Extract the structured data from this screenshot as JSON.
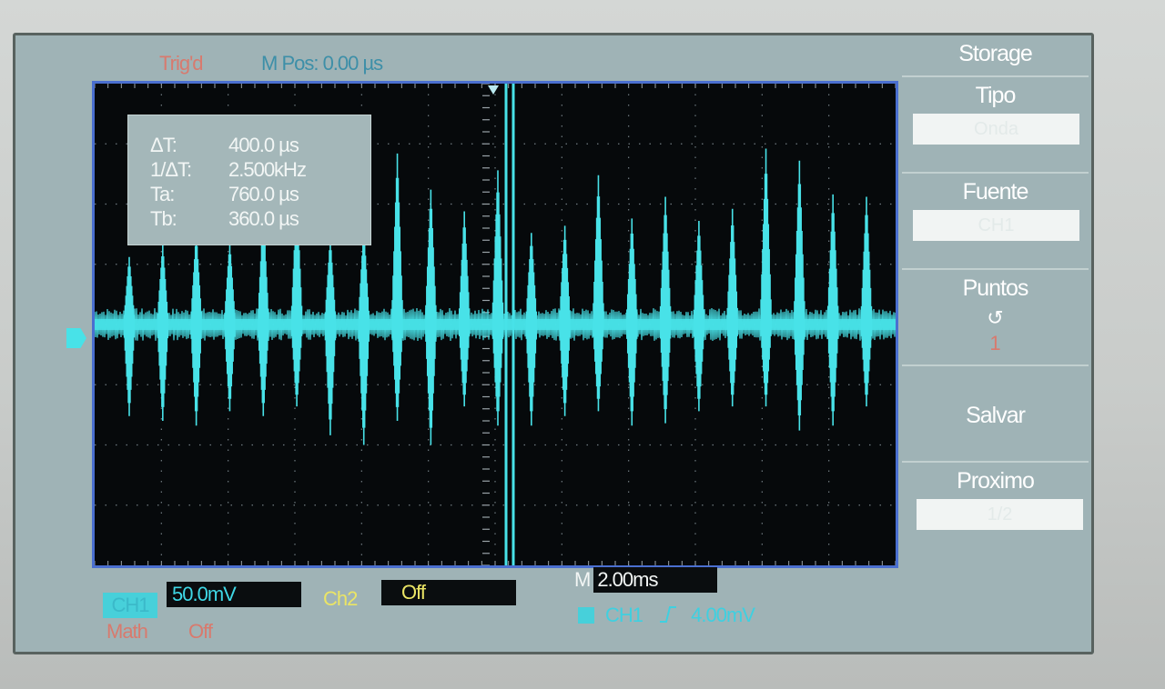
{
  "header": {
    "trigger_status": "Trig'd",
    "horizontal_position": "M Pos: 0.00 µs"
  },
  "measurement": {
    "rows": [
      {
        "label": "ΔT:",
        "value": "400.0 µs"
      },
      {
        "label": "1/ΔT:",
        "value": "2.500kHz"
      },
      {
        "label": "Ta:",
        "value": "760.0 µs"
      },
      {
        "label": "Tb:",
        "value": "360.0 µs"
      }
    ]
  },
  "menu": {
    "title": "Storage",
    "items": [
      {
        "label": "Tipo",
        "value": "Onda"
      },
      {
        "label": "Fuente",
        "value": "CH1"
      },
      {
        "label": "Puntos",
        "symbol": "↺",
        "value": "1"
      },
      {
        "label": "Salvar"
      },
      {
        "label": "Proximo",
        "value": "1/2"
      }
    ]
  },
  "footer": {
    "ch1_label": "CH1",
    "ch1_scale": "50.0mV",
    "ch2_label": "Ch2",
    "ch2_scale": "Off",
    "timebase_prefix": "M",
    "timebase": "2.00ms",
    "trigger_source": "CH1",
    "trigger_slope_icon": "rising-edge",
    "trigger_level": "4.00mV",
    "math_label": "Math",
    "math_value": "Off"
  },
  "colors": {
    "ch1": "#48e2e8",
    "ch2": "#ebe565",
    "math": "#d87a6e",
    "grid_border": "#4a6fd0"
  },
  "waveform": {
    "burst_period_divisions": 0.5,
    "spike_top_fraction": [
      0.28,
      0.33,
      0.38,
      0.34,
      0.46,
      0.54,
      0.36,
      0.4,
      0.71,
      0.56,
      0.47,
      0.64,
      0.38,
      0.41,
      0.62,
      0.44,
      0.53,
      0.43,
      0.48,
      0.73,
      0.68,
      0.54,
      0.53
    ],
    "spike_bottom_fraction": [
      0.38,
      0.4,
      0.42,
      0.36,
      0.38,
      0.34,
      0.46,
      0.5,
      0.4,
      0.5,
      0.34,
      0.42,
      0.42,
      0.38,
      0.36,
      0.42,
      0.41,
      0.36,
      0.34,
      0.34,
      0.44,
      0.42,
      0.34
    ]
  }
}
